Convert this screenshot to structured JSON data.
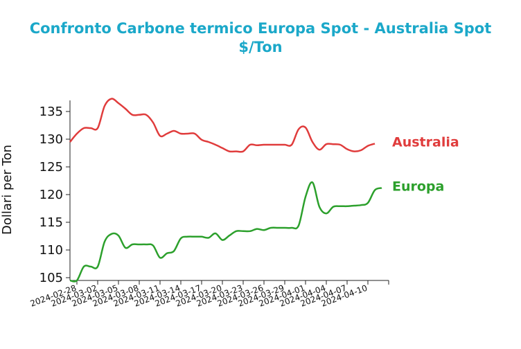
{
  "chart_data": {
    "type": "line",
    "title": "Confronto Carbone termico Europa Spot - Australia Spot",
    "subtitle": "$/Ton",
    "ylabel": "Dollari per Ton",
    "xlabel": "",
    "ylim": [
      104.5,
      137
    ],
    "xlim": [
      "2024-02-27",
      "2024-04-13"
    ],
    "yticks": [
      105,
      110,
      115,
      120,
      125,
      130,
      135
    ],
    "xticks": [
      "2024-02-28",
      "2024-03-02",
      "2024-03-05",
      "2024-03-08",
      "2024-03-11",
      "2024-03-14",
      "2024-03-17",
      "2024-03-20",
      "2024-03-23",
      "2024-03-26",
      "2024-03-29",
      "2024-04-01",
      "2024-04-04",
      "2024-04-07",
      "2024-04-10"
    ],
    "grid": false,
    "legend": "inline labels at line ends",
    "series": [
      {
        "name": "Australia",
        "color": "#e03c3c",
        "points": [
          [
            "2024-02-27",
            129.5
          ],
          [
            "2024-02-28",
            131.0
          ],
          [
            "2024-02-29",
            132.0
          ],
          [
            "2024-03-01",
            132.0
          ],
          [
            "2024-03-02",
            132.0
          ],
          [
            "2024-03-03",
            136.0
          ],
          [
            "2024-03-04",
            137.3
          ],
          [
            "2024-03-05",
            136.5
          ],
          [
            "2024-03-06",
            135.5
          ],
          [
            "2024-03-07",
            134.4
          ],
          [
            "2024-03-08",
            134.4
          ],
          [
            "2024-03-09",
            134.4
          ],
          [
            "2024-03-10",
            133.0
          ],
          [
            "2024-03-11",
            130.6
          ],
          [
            "2024-03-12",
            131.0
          ],
          [
            "2024-03-13",
            131.5
          ],
          [
            "2024-03-14",
            131.0
          ],
          [
            "2024-03-15",
            131.0
          ],
          [
            "2024-03-16",
            131.0
          ],
          [
            "2024-03-17",
            129.9
          ],
          [
            "2024-03-18",
            129.5
          ],
          [
            "2024-03-19",
            129.0
          ],
          [
            "2024-03-20",
            128.4
          ],
          [
            "2024-03-21",
            127.8
          ],
          [
            "2024-03-22",
            127.8
          ],
          [
            "2024-03-23",
            127.8
          ],
          [
            "2024-03-24",
            129.0
          ],
          [
            "2024-03-25",
            128.9
          ],
          [
            "2024-03-26",
            129.0
          ],
          [
            "2024-03-27",
            129.0
          ],
          [
            "2024-03-28",
            129.0
          ],
          [
            "2024-03-29",
            129.0
          ],
          [
            "2024-03-30",
            129.0
          ],
          [
            "2024-03-31",
            131.8
          ],
          [
            "2024-04-01",
            132.1
          ],
          [
            "2024-04-02",
            129.5
          ],
          [
            "2024-04-03",
            128.1
          ],
          [
            "2024-04-04",
            129.1
          ],
          [
            "2024-04-05",
            129.1
          ],
          [
            "2024-04-06",
            129.0
          ],
          [
            "2024-04-07",
            128.2
          ],
          [
            "2024-04-08",
            127.8
          ],
          [
            "2024-04-09",
            128.0
          ],
          [
            "2024-04-10",
            128.8
          ],
          [
            "2024-04-11",
            129.2
          ]
        ]
      },
      {
        "name": "Europa",
        "color": "#2ca02c",
        "points": [
          [
            "2024-02-27",
            104.5
          ],
          [
            "2024-02-28",
            104.5
          ],
          [
            "2024-02-29",
            107.0
          ],
          [
            "2024-03-01",
            107.0
          ],
          [
            "2024-03-02",
            107.0
          ],
          [
            "2024-03-03",
            111.5
          ],
          [
            "2024-03-04",
            112.9
          ],
          [
            "2024-03-05",
            112.6
          ],
          [
            "2024-03-06",
            110.4
          ],
          [
            "2024-03-07",
            111.0
          ],
          [
            "2024-03-08",
            111.0
          ],
          [
            "2024-03-09",
            111.0
          ],
          [
            "2024-03-10",
            110.8
          ],
          [
            "2024-03-11",
            108.6
          ],
          [
            "2024-03-12",
            109.4
          ],
          [
            "2024-03-13",
            109.8
          ],
          [
            "2024-03-14",
            112.1
          ],
          [
            "2024-03-15",
            112.4
          ],
          [
            "2024-03-16",
            112.4
          ],
          [
            "2024-03-17",
            112.4
          ],
          [
            "2024-03-18",
            112.2
          ],
          [
            "2024-03-19",
            113.0
          ],
          [
            "2024-03-20",
            111.8
          ],
          [
            "2024-03-21",
            112.6
          ],
          [
            "2024-03-22",
            113.4
          ],
          [
            "2024-03-23",
            113.4
          ],
          [
            "2024-03-24",
            113.4
          ],
          [
            "2024-03-25",
            113.8
          ],
          [
            "2024-03-26",
            113.6
          ],
          [
            "2024-03-27",
            114.0
          ],
          [
            "2024-03-28",
            114.0
          ],
          [
            "2024-03-29",
            114.0
          ],
          [
            "2024-03-30",
            114.0
          ],
          [
            "2024-03-31",
            114.4
          ],
          [
            "2024-04-01",
            119.6
          ],
          [
            "2024-04-02",
            122.2
          ],
          [
            "2024-04-03",
            117.8
          ],
          [
            "2024-04-04",
            116.6
          ],
          [
            "2024-04-05",
            117.8
          ],
          [
            "2024-04-06",
            117.9
          ],
          [
            "2024-04-07",
            117.9
          ],
          [
            "2024-04-08",
            118.0
          ],
          [
            "2024-04-09",
            118.1
          ],
          [
            "2024-04-10",
            118.5
          ],
          [
            "2024-04-11",
            120.8
          ],
          [
            "2024-04-12",
            121.2
          ]
        ]
      }
    ]
  }
}
